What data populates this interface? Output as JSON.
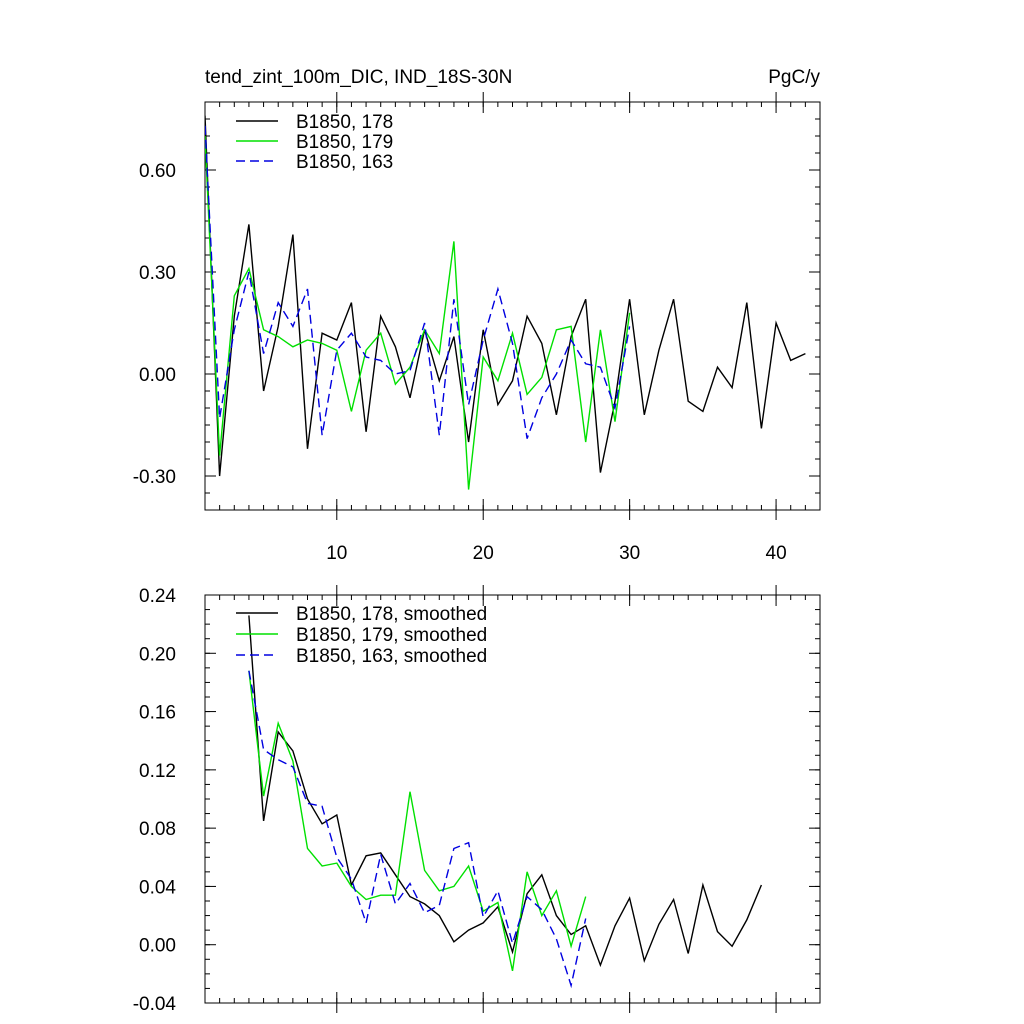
{
  "figure": {
    "title": "tend_zint_100m_DIC, IND_18S-30N",
    "units": "PgC/y"
  },
  "chart_data": [
    {
      "type": "line",
      "title": "tend_zint_100m_DIC, IND_18S-30N",
      "units_label": "PgC/y",
      "xlabel": "",
      "ylabel": "",
      "xlim": [
        1,
        43
      ],
      "ylim": [
        -0.4,
        0.8
      ],
      "yticks": [
        -0.3,
        0.0,
        0.3,
        0.6
      ],
      "ytick_labels": [
        "-0.30",
        "0.00",
        "0.30",
        "0.60"
      ],
      "xticks": [
        10,
        20,
        30,
        40
      ],
      "xtick_labels": [
        "10",
        "20",
        "30",
        "40"
      ],
      "legend_position": "top-left",
      "series": [
        {
          "name": "B1850, 178",
          "color": "#000000",
          "dash": "solid",
          "x": [
            1,
            2,
            3,
            4,
            5,
            6,
            7,
            8,
            9,
            10,
            11,
            12,
            13,
            14,
            15,
            16,
            17,
            18,
            19,
            20,
            21,
            22,
            23,
            24,
            25,
            26,
            27,
            28,
            29,
            30,
            31,
            32,
            33,
            34,
            35,
            36,
            37,
            38,
            39,
            40,
            41,
            42
          ],
          "values": [
            0.76,
            -0.3,
            0.17,
            0.44,
            -0.05,
            0.14,
            0.41,
            -0.22,
            0.12,
            0.1,
            0.21,
            -0.17,
            0.17,
            0.08,
            -0.07,
            0.13,
            -0.02,
            0.11,
            -0.2,
            0.13,
            -0.09,
            -0.02,
            0.17,
            0.09,
            -0.12,
            0.11,
            0.22,
            -0.29,
            -0.08,
            0.22,
            -0.12,
            0.07,
            0.22,
            -0.08,
            -0.11,
            0.02,
            -0.04,
            0.21,
            -0.16,
            0.15,
            0.04,
            0.06
          ]
        },
        {
          "name": "B1850, 179",
          "color": "#00e000",
          "dash": "solid",
          "x": [
            1,
            2,
            3,
            4,
            5,
            6,
            7,
            8,
            9,
            10,
            11,
            12,
            13,
            14,
            15,
            16,
            17,
            18,
            19,
            20,
            21,
            22,
            23,
            24,
            25,
            26,
            27,
            28,
            29,
            30
          ],
          "values": [
            0.7,
            -0.24,
            0.23,
            0.31,
            0.13,
            0.11,
            0.08,
            0.1,
            0.09,
            0.07,
            -0.11,
            0.07,
            0.12,
            -0.03,
            0.02,
            0.13,
            0.06,
            0.39,
            -0.34,
            0.05,
            -0.02,
            0.12,
            -0.06,
            -0.01,
            0.13,
            0.14,
            -0.2,
            0.13,
            -0.14,
            0.18
          ]
        },
        {
          "name": "B1850, 163",
          "color": "#0000e0",
          "dash": "dashed",
          "x": [
            1,
            2,
            3,
            4,
            5,
            6,
            7,
            8,
            9,
            10,
            11,
            12,
            13,
            14,
            15,
            16,
            17,
            18,
            19,
            20,
            21,
            22,
            23,
            24,
            25,
            26,
            27,
            28,
            29,
            30
          ],
          "values": [
            0.73,
            -0.13,
            0.13,
            0.3,
            0.06,
            0.21,
            0.14,
            0.25,
            -0.18,
            0.07,
            0.12,
            0.05,
            0.04,
            0.0,
            0.01,
            0.15,
            -0.18,
            0.22,
            -0.09,
            0.1,
            0.25,
            0.09,
            -0.19,
            -0.07,
            0.0,
            0.1,
            0.03,
            0.02,
            -0.1,
            0.14
          ]
        }
      ]
    },
    {
      "type": "line",
      "title": "",
      "xlabel": "",
      "ylabel": "",
      "xlim": [
        1,
        43
      ],
      "ylim": [
        -0.04,
        0.24
      ],
      "yticks": [
        -0.04,
        0.0,
        0.04,
        0.08,
        0.12,
        0.16,
        0.2,
        0.24
      ],
      "ytick_labels": [
        "-0.04",
        "0.00",
        "0.04",
        "0.08",
        "0.12",
        "0.16",
        "0.20",
        "0.24"
      ],
      "xticks": [
        10,
        20,
        30,
        40
      ],
      "xtick_labels": [],
      "legend_position": "top-left",
      "series": [
        {
          "name": "B1850, 178, smoothed",
          "color": "#000000",
          "dash": "solid",
          "x": [
            4,
            5,
            6,
            7,
            8,
            9,
            10,
            11,
            12,
            13,
            14,
            15,
            16,
            17,
            18,
            19,
            20,
            21,
            22,
            23,
            24,
            25,
            26,
            27,
            28,
            29,
            30,
            31,
            32,
            33,
            34,
            35,
            36,
            37,
            38,
            39,
            40
          ],
          "values": [
            0.226,
            0.085,
            0.146,
            0.133,
            0.1,
            0.083,
            0.089,
            0.041,
            0.061,
            0.063,
            0.048,
            0.033,
            0.028,
            0.02,
            0.002,
            0.01,
            0.015,
            0.026,
            -0.005,
            0.035,
            0.048,
            0.02,
            0.007,
            0.013,
            -0.014,
            0.013,
            0.032,
            -0.011,
            0.014,
            0.031,
            -0.006,
            0.041,
            0.009,
            -0.001,
            0.017,
            0.041,
            null
          ]
        },
        {
          "name": "B1850, 179, smoothed",
          "color": "#00e000",
          "dash": "solid",
          "x": [
            4,
            5,
            6,
            7,
            8,
            9,
            10,
            11,
            12,
            13,
            14,
            15,
            16,
            17,
            18,
            19,
            20,
            21,
            22,
            23,
            24,
            25,
            26,
            27
          ],
          "values": [
            0.188,
            0.102,
            0.152,
            0.126,
            0.066,
            0.054,
            0.056,
            0.04,
            0.031,
            0.034,
            0.034,
            0.105,
            0.051,
            0.037,
            0.04,
            0.054,
            0.023,
            0.029,
            -0.018,
            0.05,
            0.02,
            0.037,
            -0.001,
            0.033
          ]
        },
        {
          "name": "B1850, 163, smoothed",
          "color": "#0000e0",
          "dash": "dashed",
          "x": [
            4,
            5,
            6,
            7,
            8,
            9,
            10,
            11,
            12,
            13,
            14,
            15,
            16,
            17,
            18,
            19,
            20,
            21,
            22,
            23,
            24,
            25,
            26,
            27
          ],
          "values": [
            0.188,
            0.134,
            0.127,
            0.122,
            0.097,
            0.095,
            0.06,
            0.045,
            0.015,
            0.062,
            0.028,
            0.042,
            0.022,
            0.027,
            0.066,
            0.07,
            0.019,
            0.037,
            0.001,
            0.033,
            0.024,
            0.004,
            -0.028,
            0.018
          ]
        }
      ]
    }
  ]
}
